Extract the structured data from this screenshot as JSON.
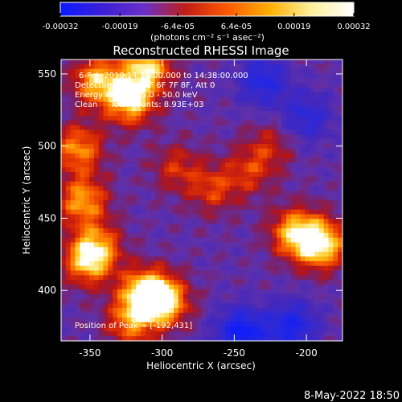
{
  "chart_data": {
    "type": "heatmap",
    "title": "Reconstructed RHESSI Image",
    "xlabel": "Heliocentric X (arcsec)",
    "ylabel": "Heliocentric Y (arcsec)",
    "xlim": [
      -370,
      -175
    ],
    "ylim": [
      365,
      560
    ],
    "x_ticks": [
      -350,
      -300,
      -250,
      -200
    ],
    "y_ticks": [
      400,
      450,
      500,
      550
    ],
    "grid": false,
    "colorbar": {
      "range": [
        -0.00032,
        0.00032
      ],
      "tick_labels": [
        "-0.00032",
        "-0.00019",
        "-6.4e-05",
        "6.4e-05",
        "0.00019",
        "0.00032"
      ],
      "units_label": "(photons cm⁻² s⁻¹ asec⁻²)",
      "colors": [
        "#0a1aff",
        "#3b1fd6",
        "#6a2fc8",
        "#c01e16",
        "#ff5a00",
        "#ffb000",
        "#fff0a0",
        "#ffffff"
      ]
    },
    "annotations": {
      "time": "6-Feb-2010 14:30:00.000 to 14:38:00.000",
      "detectors": "Detectors: 3F 4F 5F 6F 7F 8F, Att 0",
      "energy": "Energy Range: 25.0 - 50.0 keV",
      "method": "Clean     Total counts: 8.93E+03",
      "peak": "Position of Peak = [-192,431]"
    },
    "bright_regions": [
      {
        "x": -322,
        "y": 532,
        "level": 0.95
      },
      {
        "x": -345,
        "y": 545,
        "level": 0.8
      },
      {
        "x": -310,
        "y": 555,
        "level": 0.85
      },
      {
        "x": -358,
        "y": 498,
        "level": 0.7
      },
      {
        "x": -355,
        "y": 462,
        "level": 0.75
      },
      {
        "x": -352,
        "y": 420,
        "level": 0.7
      },
      {
        "x": -345,
        "y": 430,
        "level": 0.6
      },
      {
        "x": -312,
        "y": 398,
        "level": 0.95
      },
      {
        "x": -298,
        "y": 392,
        "level": 0.85
      },
      {
        "x": -322,
        "y": 378,
        "level": 0.6
      },
      {
        "x": -190,
        "y": 432,
        "level": 1.0
      },
      {
        "x": -208,
        "y": 440,
        "level": 0.8
      },
      {
        "x": -265,
        "y": 470,
        "level": 0.45
      },
      {
        "x": -240,
        "y": 482,
        "level": 0.4
      },
      {
        "x": -290,
        "y": 485,
        "level": 0.4
      },
      {
        "x": -225,
        "y": 500,
        "level": 0.35
      }
    ],
    "dark_regions": [
      {
        "x": -245,
        "y": 370,
        "level": -0.9
      },
      {
        "x": -210,
        "y": 375,
        "level": -0.7
      },
      {
        "x": -230,
        "y": 545,
        "level": -0.6
      },
      {
        "x": -200,
        "y": 520,
        "level": -0.5
      }
    ]
  },
  "footer": {
    "date": "8-May-2022 18:50"
  }
}
